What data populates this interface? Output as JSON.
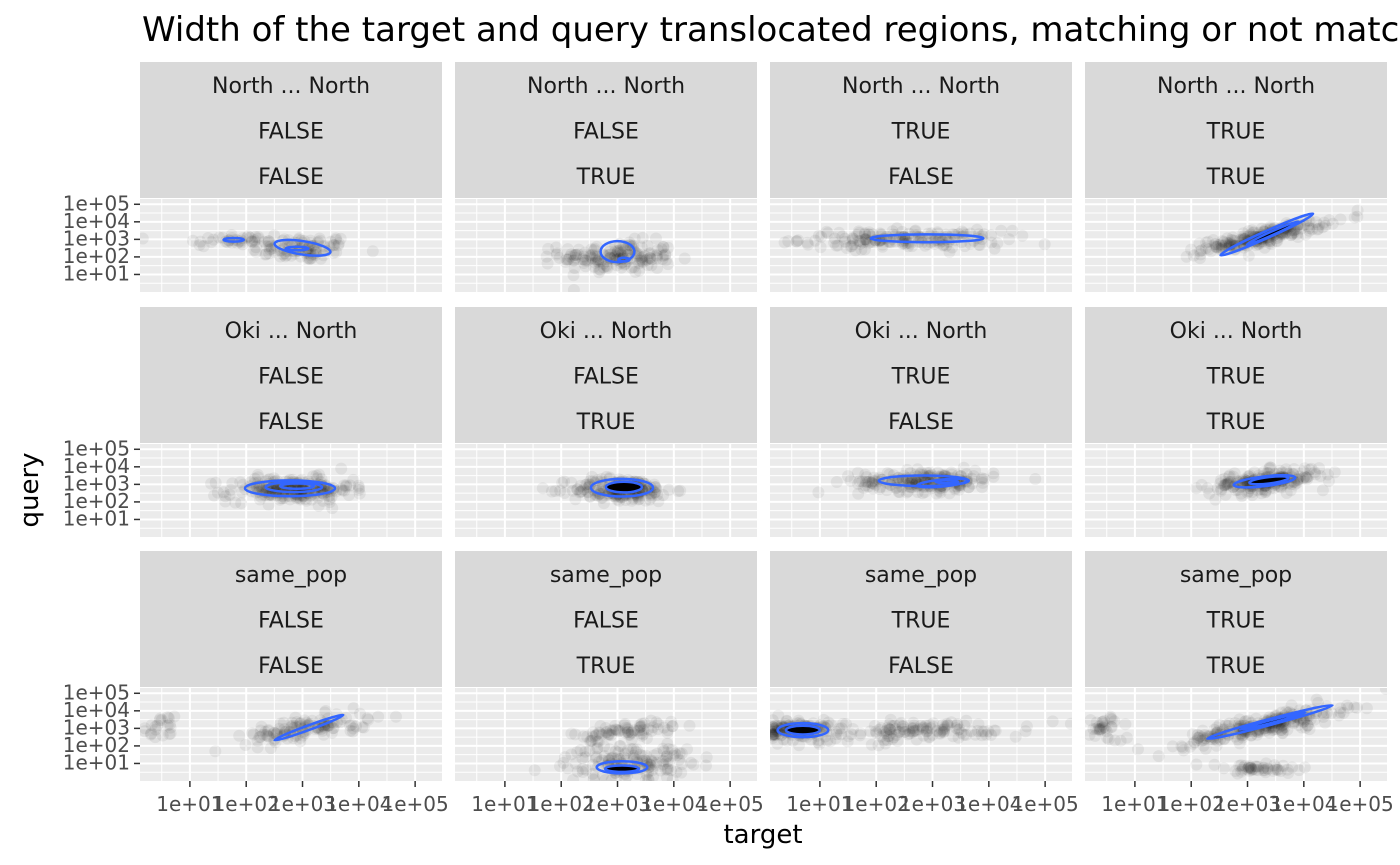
{
  "chart_data": {
    "type": "scatter",
    "title": "Width of the target and query translocated regions, matching or not matching",
    "xlabel": "target",
    "ylabel": "query",
    "x_scale": "log10",
    "y_scale": "log10",
    "xlim": [
      1.3,
      300000
    ],
    "ylim": [
      1.0,
      200000
    ],
    "x_ticks": [
      "1e+01",
      "1e+02",
      "1e+03",
      "1e+04",
      "1e+05"
    ],
    "y_ticks": [
      "1e+01",
      "1e+02",
      "1e+03",
      "1e+04",
      "1e+05"
    ],
    "grid": true,
    "point_color": "#000000",
    "point_alpha": 0.06,
    "contour_color": "#3366FF",
    "contour_fill": "#000000",
    "facet_rows": [
      "North ... North",
      "Oki ... North",
      "same_pop"
    ],
    "facet_cols": [
      [
        "FALSE",
        "FALSE"
      ],
      [
        "FALSE",
        "TRUE"
      ],
      [
        "TRUE",
        "FALSE"
      ],
      [
        "TRUE",
        "TRUE"
      ]
    ],
    "panels": [
      {
        "row": 0,
        "col": 0,
        "label": [
          "North ... North",
          "FALSE",
          "FALSE"
        ],
        "n": 130,
        "clusters": [
          {
            "x": 1000,
            "y": 300,
            "sx": 0.45,
            "sy": 0.35,
            "w": 0.7,
            "rho": 0.1
          },
          {
            "x": 60,
            "y": 900,
            "sx": 0.5,
            "sy": 0.2,
            "w": 0.3,
            "rho": 0
          }
        ],
        "contours": [
          {
            "x": 1000,
            "y": 330,
            "rx": 0.5,
            "ry": 0.38,
            "rot": -0.15
          },
          {
            "x": 800,
            "y": 300,
            "rx": 0.2,
            "ry": 0.1,
            "rot": 0
          },
          {
            "x": 60,
            "y": 950,
            "rx": 0.18,
            "ry": 0.1,
            "rot": 0
          }
        ]
      },
      {
        "row": 0,
        "col": 1,
        "label": [
          "North ... North",
          "FALSE",
          "TRUE"
        ],
        "n": 160,
        "clusters": [
          {
            "x": 1000,
            "y": 100,
            "sx": 0.5,
            "sy": 0.45,
            "w": 1,
            "rho": 0
          }
        ],
        "contours": [
          {
            "x": 1000,
            "y": 200,
            "rx": 0.3,
            "ry": 0.6,
            "rot": 0
          },
          {
            "x": 1300,
            "y": 70,
            "rx": 0.1,
            "ry": 0.1,
            "rot": 0
          }
        ]
      },
      {
        "row": 0,
        "col": 2,
        "label": [
          "North ... North",
          "TRUE",
          "FALSE"
        ],
        "n": 170,
        "clusters": [
          {
            "x": 300,
            "y": 1000,
            "sx": 0.9,
            "sy": 0.25,
            "w": 1,
            "rho": 0
          }
        ],
        "contours": [
          {
            "x": 800,
            "y": 1150,
            "rx": 1.0,
            "ry": 0.22,
            "rot": 0
          }
        ]
      },
      {
        "row": 0,
        "col": 3,
        "label": [
          "North ... North",
          "TRUE",
          "TRUE"
        ],
        "n": 210,
        "clusters": [
          {
            "x": 2000,
            "y": 1500,
            "sx": 0.55,
            "sy": 0.45,
            "w": 1,
            "rho": 0.85
          }
        ],
        "contours": [
          {
            "x": 2200,
            "y": 1900,
            "rx": 0.9,
            "ry": 0.2,
            "rot": 0.42
          },
          {
            "x": 2800,
            "y": 2300,
            "rx": 0.5,
            "ry": 0.1,
            "rot": 0.42
          }
        ],
        "filled": true
      },
      {
        "row": 1,
        "col": 0,
        "label": [
          "Oki ... North",
          "FALSE",
          "FALSE"
        ],
        "n": 230,
        "clusters": [
          {
            "x": 600,
            "y": 500,
            "sx": 0.55,
            "sy": 0.35,
            "w": 1,
            "rho": 0
          }
        ],
        "contours": [
          {
            "x": 600,
            "y": 600,
            "rx": 0.8,
            "ry": 0.45,
            "rot": 0
          },
          {
            "x": 700,
            "y": 700,
            "rx": 0.5,
            "ry": 0.28,
            "rot": 0
          },
          {
            "x": 800,
            "y": 800,
            "rx": 0.3,
            "ry": 0.15,
            "rot": 0
          }
        ]
      },
      {
        "row": 1,
        "col": 1,
        "label": [
          "Oki ... North",
          "FALSE",
          "TRUE"
        ],
        "n": 190,
        "clusters": [
          {
            "x": 1200,
            "y": 500,
            "sx": 0.45,
            "sy": 0.35,
            "w": 1,
            "rho": 0
          }
        ],
        "contours": [
          {
            "x": 1200,
            "y": 650,
            "rx": 0.55,
            "ry": 0.5,
            "rot": 0
          },
          {
            "x": 1300,
            "y": 700,
            "rx": 0.32,
            "ry": 0.3,
            "rot": 0
          }
        ],
        "filled": true
      },
      {
        "row": 1,
        "col": 2,
        "label": [
          "Oki ... North",
          "TRUE",
          "FALSE"
        ],
        "n": 200,
        "clusters": [
          {
            "x": 800,
            "y": 1500,
            "sx": 0.6,
            "sy": 0.3,
            "w": 1,
            "rho": 0
          }
        ],
        "contours": [
          {
            "x": 700,
            "y": 1600,
            "rx": 0.8,
            "ry": 0.3,
            "rot": 0
          },
          {
            "x": 1500,
            "y": 1200,
            "rx": 0.45,
            "ry": 0.2,
            "rot": 0.1
          },
          {
            "x": 1800,
            "y": 1400,
            "rx": 0.2,
            "ry": 0.08,
            "rot": 0
          }
        ]
      },
      {
        "row": 1,
        "col": 3,
        "label": [
          "Oki ... North",
          "TRUE",
          "TRUE"
        ],
        "n": 200,
        "clusters": [
          {
            "x": 2000,
            "y": 1500,
            "sx": 0.5,
            "sy": 0.35,
            "w": 1,
            "rho": 0.5
          }
        ],
        "contours": [
          {
            "x": 2000,
            "y": 1500,
            "rx": 0.55,
            "ry": 0.28,
            "rot": 0.12
          },
          {
            "x": 2400,
            "y": 1700,
            "rx": 0.35,
            "ry": 0.18,
            "rot": 0.12
          }
        ],
        "filled": true
      },
      {
        "row": 2,
        "col": 0,
        "label": [
          "same_pop",
          "FALSE",
          "FALSE"
        ],
        "n": 140,
        "clusters": [
          {
            "x": 1200,
            "y": 1000,
            "sx": 0.55,
            "sy": 0.4,
            "w": 0.85,
            "rho": 0.6
          },
          {
            "x": 3,
            "y": 900,
            "sx": 0.15,
            "sy": 0.4,
            "w": 0.15,
            "rho": 0
          }
        ],
        "contours": [
          {
            "x": 1300,
            "y": 1100,
            "rx": 0.65,
            "ry": 0.13,
            "rot": 0.35
          }
        ]
      },
      {
        "row": 2,
        "col": 1,
        "label": [
          "same_pop",
          "FALSE",
          "TRUE"
        ],
        "n": 230,
        "clusters": [
          {
            "x": 1500,
            "y": 12,
            "sx": 0.55,
            "sy": 0.55,
            "w": 0.7,
            "rho": 0.2
          },
          {
            "x": 1500,
            "y": 800,
            "sx": 0.5,
            "sy": 0.3,
            "w": 0.3,
            "rho": 0.6
          }
        ],
        "contours": [
          {
            "x": 1200,
            "y": 6,
            "rx": 0.45,
            "ry": 0.35,
            "rot": 0
          },
          {
            "x": 1200,
            "y": 5,
            "rx": 0.3,
            "ry": 0.18,
            "rot": 0
          }
        ],
        "filled": true
      },
      {
        "row": 2,
        "col": 2,
        "label": [
          "same_pop",
          "TRUE",
          "FALSE"
        ],
        "n": 260,
        "clusters": [
          {
            "x": 4,
            "y": 800,
            "sx": 0.3,
            "sy": 0.3,
            "w": 0.5,
            "rho": 0
          },
          {
            "x": 500,
            "y": 700,
            "sx": 1.0,
            "sy": 0.3,
            "w": 0.5,
            "rho": 0.3
          }
        ],
        "contours": [
          {
            "x": 5,
            "y": 800,
            "rx": 0.45,
            "ry": 0.4,
            "rot": 0
          },
          {
            "x": 5,
            "y": 800,
            "rx": 0.3,
            "ry": 0.25,
            "rot": 0
          }
        ],
        "filled": true
      },
      {
        "row": 2,
        "col": 3,
        "label": [
          "same_pop",
          "TRUE",
          "TRUE"
        ],
        "n": 320,
        "clusters": [
          {
            "x": 2000,
            "y": 1500,
            "sx": 0.7,
            "sy": 0.55,
            "w": 0.75,
            "rho": 0.85
          },
          {
            "x": 1500,
            "y": 5,
            "sx": 0.5,
            "sy": 0.15,
            "w": 0.15,
            "rho": 0
          },
          {
            "x": 3,
            "y": 1000,
            "sx": 0.15,
            "sy": 0.4,
            "w": 0.1,
            "rho": 0
          }
        ],
        "contours": [
          {
            "x": 2500,
            "y": 2300,
            "rx": 1.15,
            "ry": 0.17,
            "rot": 0.26
          },
          {
            "x": 2800,
            "y": 2600,
            "rx": 0.6,
            "ry": 0.08,
            "rot": 0.26
          }
        ],
        "filled": true
      }
    ]
  }
}
